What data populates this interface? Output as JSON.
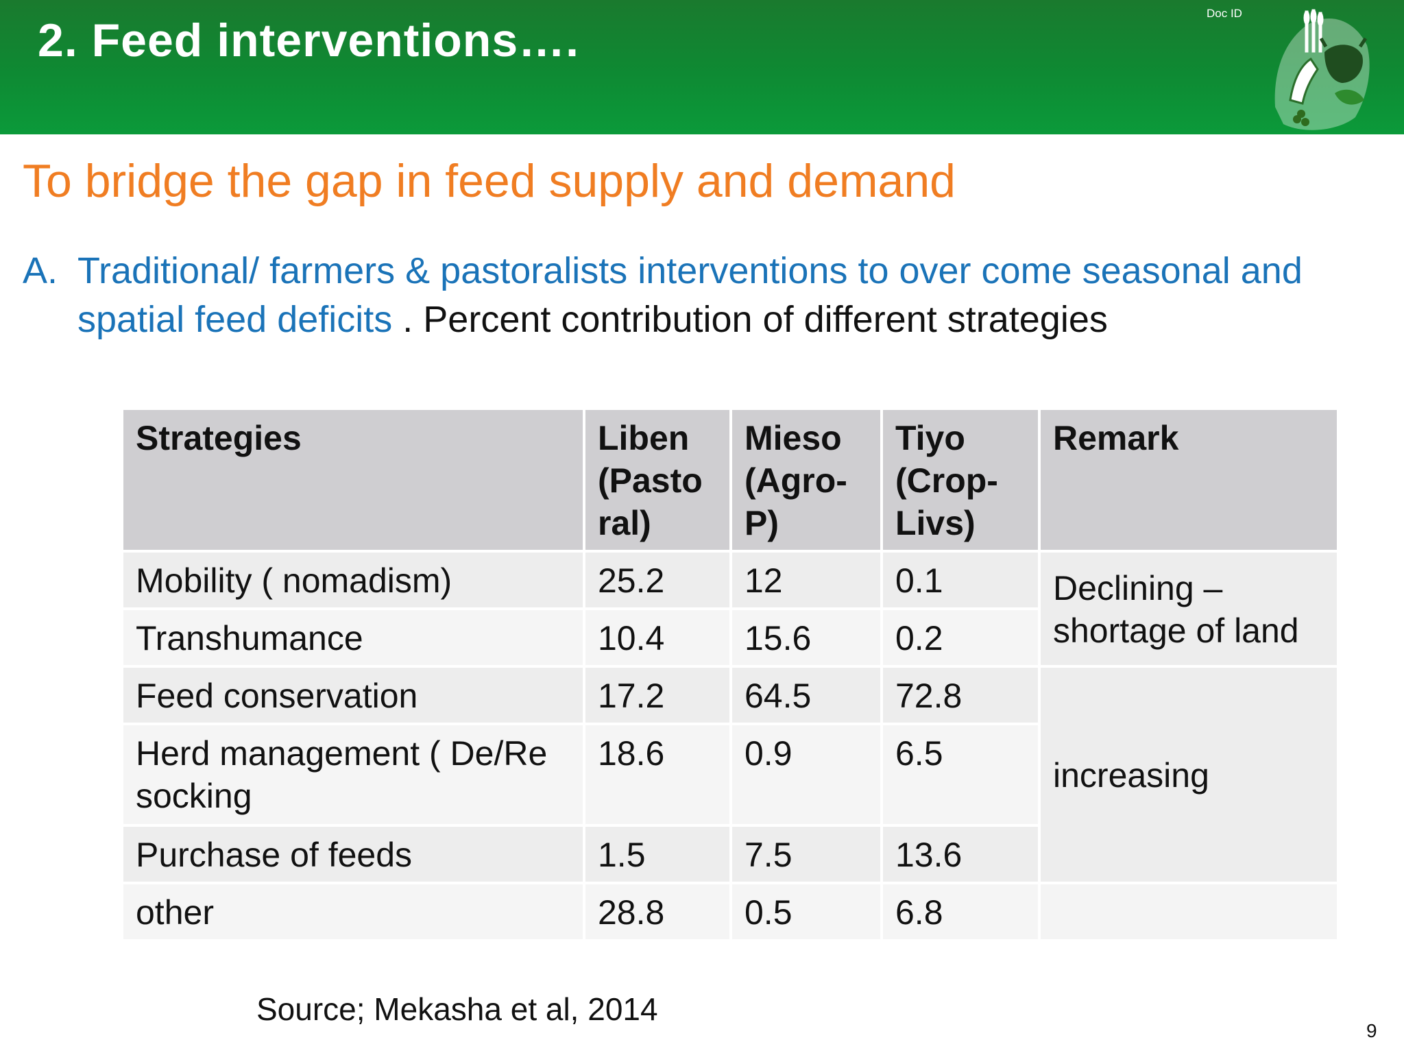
{
  "header": {
    "title": "2.  Feed interventions….",
    "doc_id": "Doc ID"
  },
  "subtitle": "To bridge the  gap in feed supply and demand",
  "bullet": {
    "marker": "A.",
    "blue_text": "Traditional/ farmers & pastoralists  interventions to over come seasonal and spatial feed deficits",
    "separator": " .  ",
    "black_text": "Percent contribution of different strategies"
  },
  "table": {
    "headers": [
      "Strategies",
      "Liben (Pastoral)",
      "Mieso (Agro-P)",
      "Tiyo (Crop-Livs)",
      "Remark"
    ],
    "header_lines": {
      "liben": [
        " Liben",
        "(Pasto",
        "ral)"
      ],
      "mieso": [
        "Mieso",
        "(Agro-",
        "P)"
      ],
      "tiyo": [
        "Tiyo",
        "(Crop-",
        "Livs)"
      ]
    },
    "rows": [
      {
        "strategy": "Mobility ( nomadism)",
        "liben": "25.2",
        "mieso": "12",
        "tiyo": "0.1"
      },
      {
        "strategy": "Transhumance",
        "liben": "10.4",
        "mieso": "15.6",
        "tiyo": "0.2"
      },
      {
        "strategy": "Feed conservation",
        "liben": "17.2",
        "mieso": "64.5",
        "tiyo": "72.8"
      },
      {
        "strategy": "Herd management ( De/Re socking",
        "liben": "18.6",
        "mieso": "0.9",
        "tiyo": "6.5"
      },
      {
        "strategy": "Purchase of feeds",
        "liben": "1.5",
        "mieso": "7.5",
        "tiyo": "13.6"
      },
      {
        "strategy": "other",
        "liben": "28.8",
        "mieso": "0.5",
        "tiyo": "6.8"
      }
    ],
    "remarks": {
      "declining": "Declining – shortage of land",
      "increasing": "increasing"
    }
  },
  "source": "Source; Mekasha et al, 2014",
  "page_number": "9",
  "colors": {
    "header_green": "#0e8a33",
    "subtitle_orange": "#f07d22",
    "bullet_blue": "#1a73b8",
    "table_header_bg": "#cfced1",
    "table_row_bg": "#ededed"
  }
}
